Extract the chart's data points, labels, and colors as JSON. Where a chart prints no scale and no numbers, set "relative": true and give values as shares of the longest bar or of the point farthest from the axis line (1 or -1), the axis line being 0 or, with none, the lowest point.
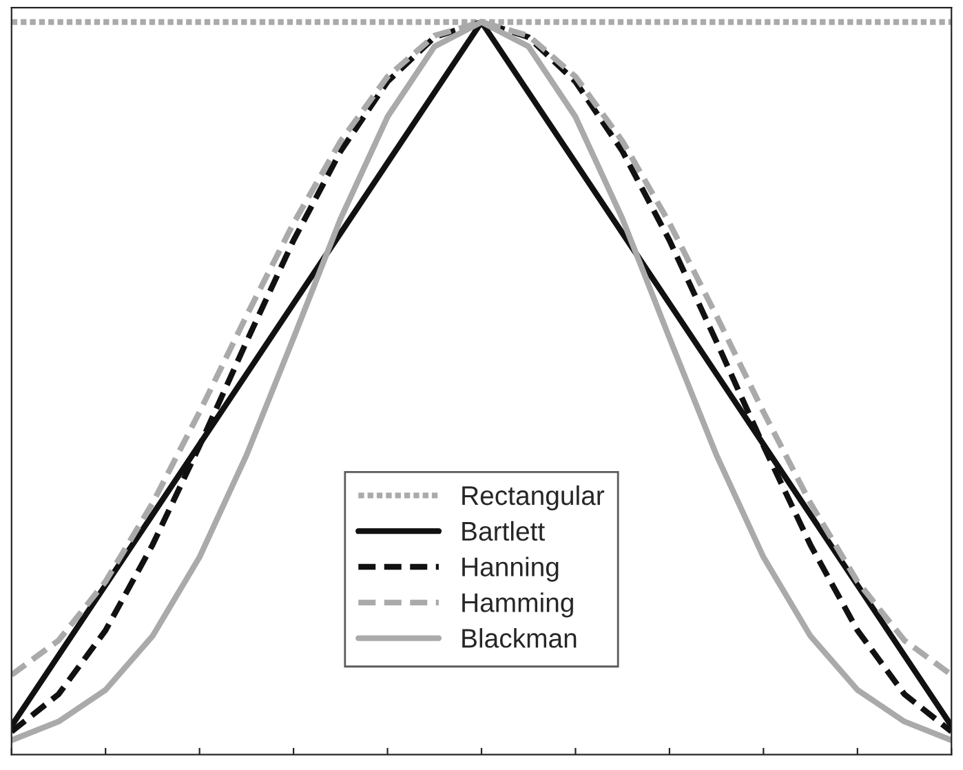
{
  "chart_data": {
    "type": "line",
    "relative": true,
    "legend": "bottom",
    "tick_labels": false,
    "grid": false,
    "categories": [
      null,
      null,
      null,
      null,
      null,
      null,
      null,
      null,
      null,
      null,
      null,
      null,
      null,
      null,
      null,
      null,
      null,
      null,
      null,
      null,
      null
    ],
    "series": [
      {
        "name": "Rectangular",
        "color": "#aaaaaa",
        "line_style": "dotted",
        "values": [
          1,
          1,
          1,
          1,
          1,
          1,
          1,
          1,
          1,
          1,
          1,
          1,
          1,
          1,
          1,
          1,
          1,
          1,
          1,
          1,
          1
        ]
      },
      {
        "name": "Bartlett",
        "color": "#111111",
        "line_style": "solid",
        "values": [
          0.02,
          0.118,
          0.216,
          0.314,
          0.412,
          0.51,
          0.608,
          0.706,
          0.804,
          0.902,
          1,
          0.902,
          0.804,
          0.706,
          0.608,
          0.51,
          0.412,
          0.314,
          0.216,
          0.118,
          0.02
        ]
      },
      {
        "name": "Hanning",
        "color": "#111111",
        "line_style": "dashed",
        "values": [
          0.012,
          0.064,
          0.153,
          0.272,
          0.41,
          0.555,
          0.696,
          0.82,
          0.917,
          0.979,
          1,
          0.979,
          0.917,
          0.82,
          0.696,
          0.555,
          0.41,
          0.272,
          0.153,
          0.064,
          0.012
        ]
      },
      {
        "name": "Hamming",
        "color": "#aaaaaa",
        "line_style": "dashed",
        "values": [
          0.091,
          0.139,
          0.221,
          0.33,
          0.457,
          0.591,
          0.72,
          0.834,
          0.924,
          0.981,
          1,
          0.981,
          0.924,
          0.834,
          0.72,
          0.591,
          0.457,
          0.33,
          0.221,
          0.139,
          0.091
        ]
      },
      {
        "name": "Blackman",
        "color": "#aaaaaa",
        "line_style": "solid",
        "values": [
          0,
          0.026,
          0.07,
          0.145,
          0.255,
          0.397,
          0.56,
          0.726,
          0.868,
          0.966,
          1,
          0.966,
          0.868,
          0.726,
          0.56,
          0.397,
          0.255,
          0.145,
          0.07,
          0.026,
          0
        ]
      }
    ]
  }
}
